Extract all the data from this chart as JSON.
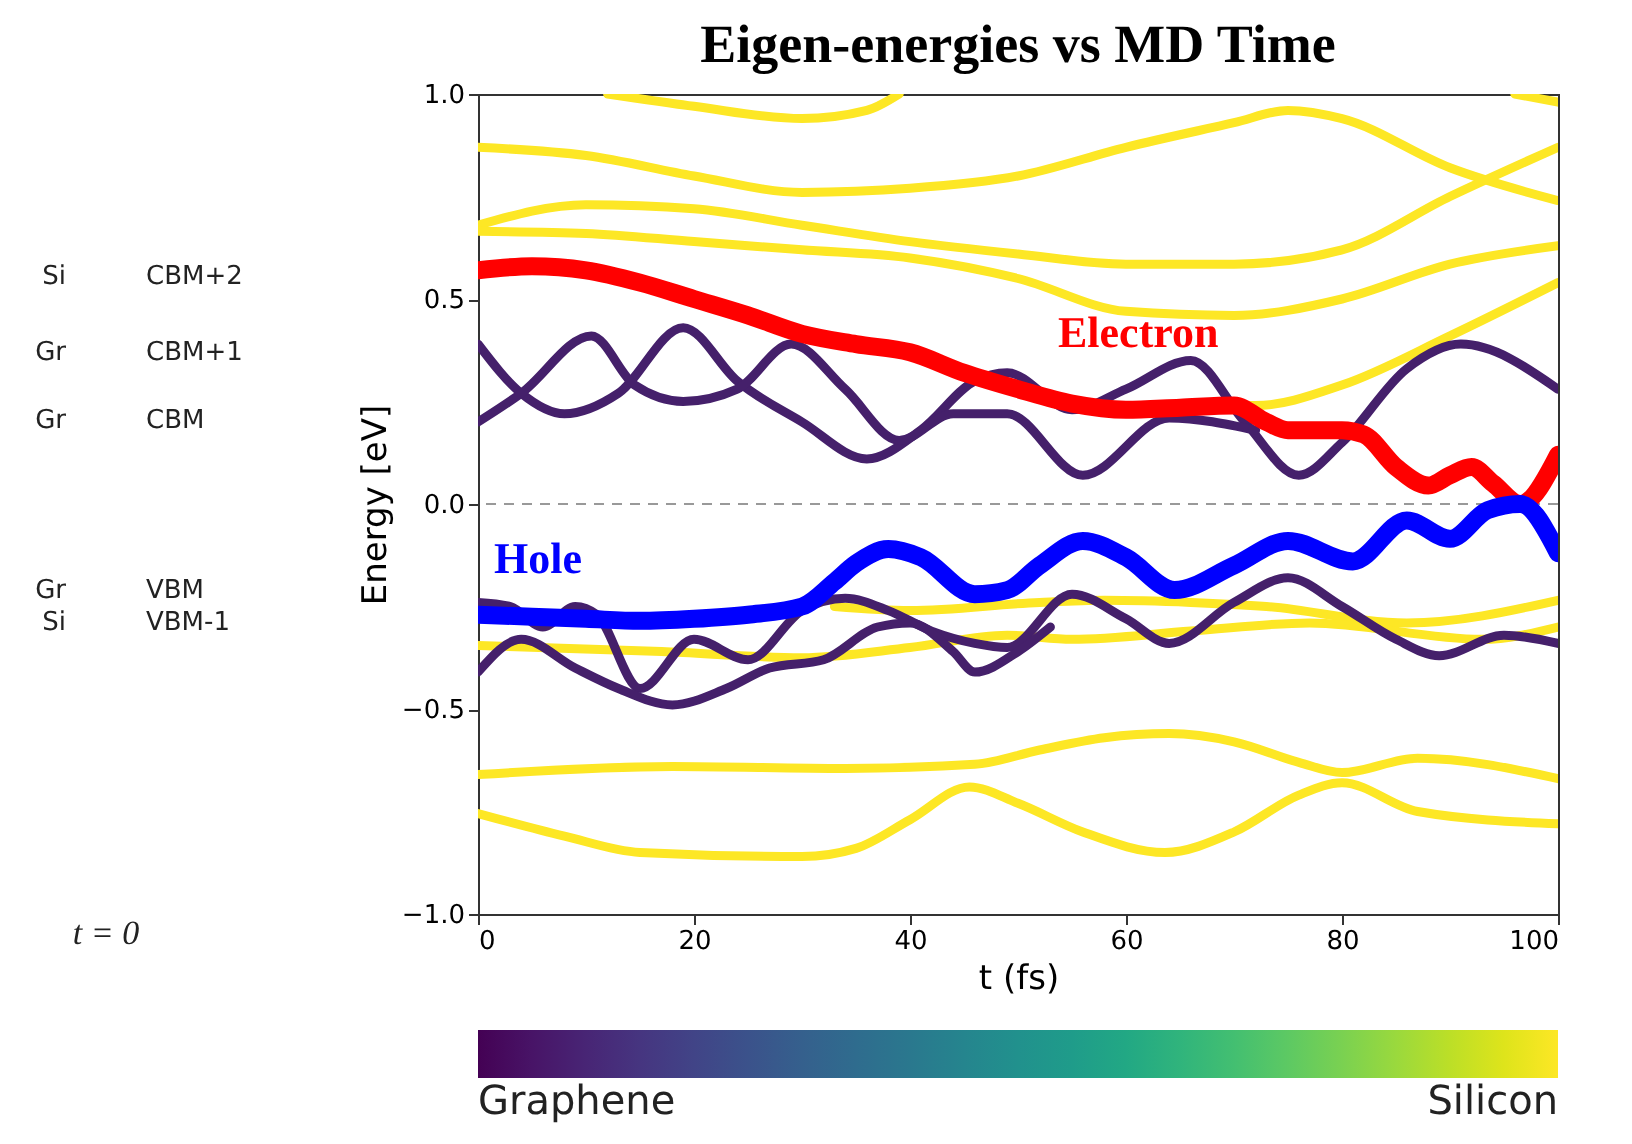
{
  "chart_data": [
    {
      "type": "other",
      "annotations": [
        "Si",
        "CBM+2",
        "Gr",
        "CBM+1",
        "Gr",
        "CBM",
        "Gr",
        "VBM",
        "Si",
        "VBM-1",
        "t = 0"
      ]
    },
    {
      "type": "line",
      "title": "Eigen-energies vs MD Time",
      "xlabel": "t (fs)",
      "ylabel": "Energy [eV]",
      "xlim": [
        0,
        100
      ],
      "ylim": [
        -1,
        1
      ],
      "xticks": [
        0,
        20,
        40,
        60,
        80,
        100
      ],
      "yticks": [
        {
          "value": -1,
          "label": "−1.0"
        },
        {
          "value": -0.5,
          "label": "−0.5"
        },
        {
          "value": 0,
          "label": "0.0"
        },
        {
          "value": 0.5,
          "label": "0.5"
        },
        {
          "value": 1,
          "label": "1.0"
        }
      ],
      "clim": [
        0,
        1
      ],
      "cticks": [
        {
          "value": 0,
          "label": "Graphene"
        },
        {
          "value": 1,
          "label": "Silicon"
        }
      ],
      "ref_lines": [
        {
          "axis": "y",
          "value": 0,
          "color": "#999999",
          "line_style": "dashed"
        }
      ],
      "series": [
        {
          "color": "#fde725",
          "x": [
            12,
            20,
            30,
            36,
            39
          ],
          "values": [
            1.0,
            0.97,
            0.94,
            0.96,
            1.0
          ]
        },
        {
          "color": "#fde725",
          "x": [
            96,
            100
          ],
          "values": [
            1.0,
            0.98
          ]
        },
        {
          "color": "#fde725",
          "x": [
            0,
            10,
            20,
            30,
            40,
            50,
            60,
            70,
            75,
            80,
            90,
            100
          ],
          "values": [
            0.87,
            0.85,
            0.8,
            0.76,
            0.77,
            0.8,
            0.87,
            0.93,
            0.96,
            0.94,
            0.82,
            0.74
          ]
        },
        {
          "color": "#fde725",
          "x": [
            0,
            10,
            20,
            30,
            40,
            50,
            60,
            70,
            80,
            90,
            100
          ],
          "values": [
            0.68,
            0.73,
            0.72,
            0.68,
            0.64,
            0.61,
            0.585,
            0.585,
            0.62,
            0.75,
            0.87
          ]
        },
        {
          "color": "#fde725",
          "x": [
            0,
            10,
            20,
            30,
            40,
            50,
            60,
            70,
            80,
            90,
            100
          ],
          "values": [
            0.665,
            0.66,
            0.64,
            0.62,
            0.6,
            0.55,
            0.47,
            0.46,
            0.5,
            0.585,
            0.63
          ]
        },
        {
          "color": "#fde725",
          "x": [
            70,
            72,
            80,
            90,
            100
          ],
          "values": [
            0.24,
            0.24,
            0.29,
            0.41,
            0.54
          ]
        },
        {
          "color": "#fde725",
          "x": [
            33,
            40,
            52,
            58,
            66,
            73,
            86,
            100
          ],
          "values": [
            -0.25,
            -0.26,
            -0.24,
            -0.235,
            -0.24,
            -0.25,
            -0.29,
            -0.235
          ]
        },
        {
          "color": "#fde725",
          "x": [
            0,
            17,
            30,
            40,
            49,
            55,
            66,
            77,
            93,
            100
          ],
          "values": [
            -0.345,
            -0.36,
            -0.375,
            -0.35,
            -0.32,
            -0.33,
            -0.31,
            -0.29,
            -0.33,
            -0.3
          ]
        },
        {
          "color": "#fde725",
          "x": [
            0,
            18,
            34,
            46,
            52,
            58,
            64,
            70,
            76,
            80,
            87,
            100
          ],
          "values": [
            -0.66,
            -0.64,
            -0.645,
            -0.635,
            -0.6,
            -0.57,
            -0.56,
            -0.58,
            -0.63,
            -0.655,
            -0.62,
            -0.67
          ]
        },
        {
          "color": "#fde725",
          "x": [
            0,
            8,
            15,
            30,
            35,
            40,
            45.5,
            50,
            56,
            63.6,
            70,
            76,
            80,
            87,
            100
          ],
          "values": [
            -0.755,
            -0.81,
            -0.85,
            -0.86,
            -0.84,
            -0.77,
            -0.69,
            -0.73,
            -0.8,
            -0.85,
            -0.8,
            -0.71,
            -0.68,
            -0.75,
            -0.78
          ]
        },
        {
          "color": "#45206b",
          "x": [
            0,
            4,
            8,
            13,
            19,
            24,
            30,
            36,
            41,
            46,
            49,
            55,
            60,
            66,
            71,
            76,
            80,
            86,
            91,
            100
          ],
          "values": [
            0.39,
            0.27,
            0.22,
            0.27,
            0.43,
            0.3,
            0.2,
            0.11,
            0.18,
            0.3,
            0.32,
            0.23,
            0.28,
            0.35,
            0.2,
            0.07,
            0.15,
            0.33,
            0.39,
            0.28
          ]
        },
        {
          "color": "#45206b",
          "x": [
            0,
            4,
            10.5,
            14.5,
            19,
            24,
            29,
            34,
            39,
            44,
            49,
            56,
            64,
            72
          ],
          "values": [
            0.2,
            0.27,
            0.41,
            0.29,
            0.25,
            0.28,
            0.39,
            0.28,
            0.155,
            0.22,
            0.22,
            0.07,
            0.21,
            0.18
          ]
        },
        {
          "color": "#45206b",
          "x": [
            0,
            3,
            6,
            9,
            11,
            15,
            20,
            25,
            30,
            34,
            38,
            42,
            46,
            49,
            55,
            60,
            64,
            70,
            75,
            80,
            85,
            89,
            95,
            100
          ],
          "values": [
            -0.24,
            -0.25,
            -0.3,
            -0.25,
            -0.27,
            -0.45,
            -0.33,
            -0.38,
            -0.26,
            -0.23,
            -0.26,
            -0.31,
            -0.34,
            -0.35,
            -0.22,
            -0.28,
            -0.34,
            -0.24,
            -0.18,
            -0.25,
            -0.33,
            -0.37,
            -0.32,
            -0.34
          ]
        },
        {
          "color": "#45206b",
          "x": [
            0,
            4,
            9,
            13,
            18,
            23,
            27,
            32,
            37,
            40,
            44,
            46,
            50,
            53
          ],
          "values": [
            -0.41,
            -0.33,
            -0.4,
            -0.45,
            -0.49,
            -0.45,
            -0.4,
            -0.38,
            -0.3,
            -0.29,
            -0.36,
            -0.41,
            -0.36,
            -0.3
          ]
        },
        {
          "name": "Electron",
          "color": "#ff0000",
          "x": [
            0,
            5,
            10,
            15,
            20,
            25,
            30,
            35,
            40,
            45,
            50,
            55,
            60,
            65,
            70,
            73,
            75,
            80,
            82,
            85,
            88,
            90,
            92,
            94,
            96.5,
            100
          ],
          "values": [
            0.57,
            0.58,
            0.57,
            0.54,
            0.5,
            0.46,
            0.415,
            0.39,
            0.37,
            0.32,
            0.28,
            0.245,
            0.23,
            0.235,
            0.24,
            0.2,
            0.18,
            0.18,
            0.17,
            0.09,
            0.045,
            0.07,
            0.09,
            0.05,
            0.0,
            0.12
          ]
        },
        {
          "name": "Hole",
          "color": "#0000ff",
          "x": [
            0,
            5,
            10,
            15,
            20,
            25,
            30,
            33,
            35,
            38,
            41,
            46,
            49,
            52,
            56,
            60,
            64.5,
            70,
            75,
            81,
            86,
            90,
            93.5,
            96.5,
            100
          ],
          "values": [
            -0.27,
            -0.275,
            -0.28,
            -0.285,
            -0.28,
            -0.27,
            -0.25,
            -0.19,
            -0.145,
            -0.11,
            -0.13,
            -0.22,
            -0.21,
            -0.15,
            -0.09,
            -0.13,
            -0.21,
            -0.15,
            -0.09,
            -0.14,
            -0.04,
            -0.085,
            -0.015,
            0.0,
            -0.12
          ]
        }
      ]
    }
  ]
}
